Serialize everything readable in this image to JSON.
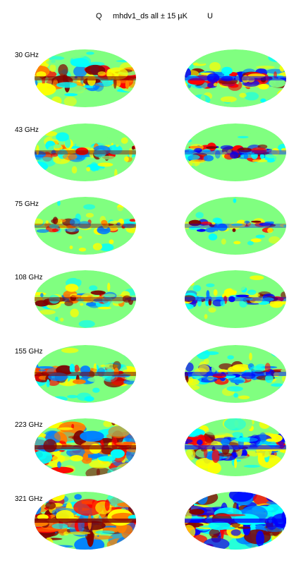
{
  "title": {
    "left": "Q",
    "center": "mhdv1_ds all ± 15 µK",
    "right": "U"
  },
  "colormap": [
    "#00008f",
    "#0000ff",
    "#0080ff",
    "#00ffff",
    "#80ff80",
    "#ffff00",
    "#ff8000",
    "#ff0000",
    "#800000"
  ],
  "panels": [
    {
      "freq": "30 GHz",
      "q_level": 0.55,
      "u_level": 0.45
    },
    {
      "freq": "43 GHz",
      "q_level": 0.35,
      "u_level": 0.25
    },
    {
      "freq": "75 GHz",
      "q_level": 0.2,
      "u_level": 0.12
    },
    {
      "freq": "108 GHz",
      "q_level": 0.3,
      "u_level": 0.2
    },
    {
      "freq": "155 GHz",
      "q_level": 0.5,
      "u_level": 0.4
    },
    {
      "freq": "223 GHz",
      "q_level": 0.8,
      "u_level": 0.65
    },
    {
      "freq": "321 GHz",
      "q_level": 1.0,
      "u_level": 0.9
    }
  ]
}
